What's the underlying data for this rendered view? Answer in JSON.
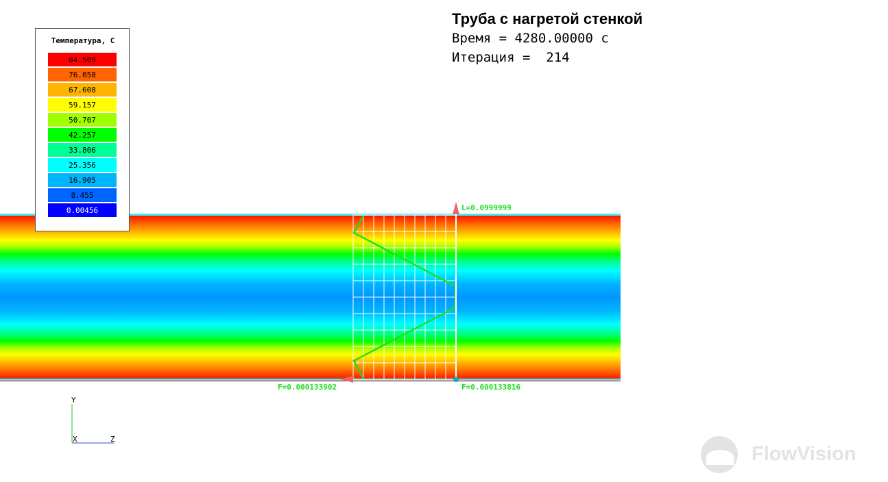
{
  "legend": {
    "title": "Температура, С",
    "entries": [
      {
        "value": "84.509",
        "color": "#ff0000"
      },
      {
        "value": "76.058",
        "color": "#ff6400"
      },
      {
        "value": "67.608",
        "color": "#ffb400"
      },
      {
        "value": "59.157",
        "color": "#ffff00"
      },
      {
        "value": "50.707",
        "color": "#a0ff00"
      },
      {
        "value": "42.257",
        "color": "#00ff00"
      },
      {
        "value": "33.806",
        "color": "#00ff96"
      },
      {
        "value": "25.356",
        "color": "#00ffff"
      },
      {
        "value": "16.905",
        "color": "#00b4ff"
      },
      {
        "value": "8.455",
        "color": "#0064ff"
      },
      {
        "value": "0.00456",
        "color": "#0000ff",
        "text_color": "#ffffff"
      }
    ]
  },
  "info": {
    "title": "Труба с нагретой стенкой",
    "time_line": "Время = 4280.00000 с",
    "iteration_line": "Итерация =  214"
  },
  "labels": {
    "length": "L=0.0999999",
    "force_left": "F=0.000133902",
    "force_right": "F=0.000133816"
  },
  "axes": {
    "y": "Y",
    "x": "X",
    "z": "Z"
  },
  "logo": {
    "text": "FlowVision"
  },
  "colors": {
    "profile_line": "#22dd22",
    "grid": "#ffffff",
    "pipe_edge": "#40f0f0"
  }
}
